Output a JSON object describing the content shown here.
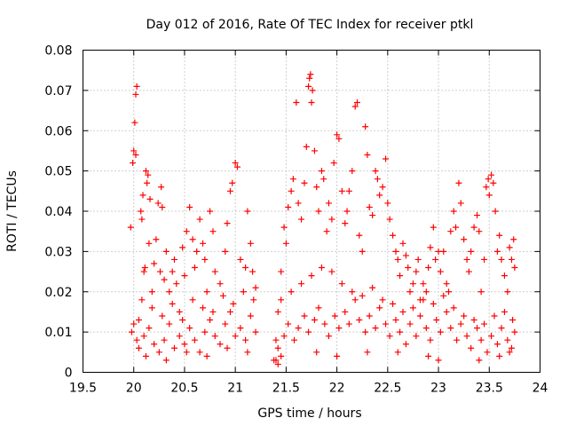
{
  "chart_data": {
    "type": "scatter",
    "title": "Day 012 of 2016, Rate Of TEC Index for receiver ptkl",
    "xlabel": "GPS time / hours",
    "ylabel": "ROTI / TECUs",
    "xlim": [
      19.5,
      24
    ],
    "ylim": [
      0,
      0.08
    ],
    "x_ticks": [
      19.5,
      20,
      20.5,
      21,
      21.5,
      22,
      22.5,
      23,
      23.5,
      24
    ],
    "x_tick_labels": [
      "19.5",
      "20",
      "20.5",
      "21",
      "21.5",
      "22",
      "22.5",
      "23",
      "23.5",
      "24"
    ],
    "y_ticks": [
      0,
      0.01,
      0.02,
      0.03,
      0.04,
      0.05,
      0.06,
      0.07,
      0.08
    ],
    "y_tick_labels": [
      "0",
      "0.01",
      "0.02",
      "0.03",
      "0.04",
      "0.05",
      "0.06",
      "0.07",
      "0.08"
    ],
    "grid": true,
    "marker": "+",
    "color": "#ff0000",
    "series": [
      {
        "name": "ROTI",
        "points": [
          [
            19.97,
            0.036
          ],
          [
            19.99,
            0.052
          ],
          [
            20.0,
            0.055
          ],
          [
            20.01,
            0.062
          ],
          [
            20.02,
            0.069
          ],
          [
            20.03,
            0.071
          ],
          [
            20.02,
            0.054
          ],
          [
            19.98,
            0.01
          ],
          [
            20.0,
            0.012
          ],
          [
            20.03,
            0.008
          ],
          [
            20.05,
            0.013
          ],
          [
            20.07,
            0.04
          ],
          [
            20.08,
            0.038
          ],
          [
            20.09,
            0.044
          ],
          [
            20.1,
            0.025
          ],
          [
            20.11,
            0.026
          ],
          [
            20.12,
            0.05
          ],
          [
            20.13,
            0.047
          ],
          [
            20.14,
            0.049
          ],
          [
            20.15,
            0.032
          ],
          [
            20.16,
            0.043
          ],
          [
            20.18,
            0.02
          ],
          [
            20.2,
            0.027
          ],
          [
            20.22,
            0.033
          ],
          [
            20.24,
            0.042
          ],
          [
            20.26,
            0.025
          ],
          [
            20.27,
            0.046
          ],
          [
            20.28,
            0.041
          ],
          [
            20.3,
            0.023
          ],
          [
            20.32,
            0.03
          ],
          [
            20.35,
            0.02
          ],
          [
            20.38,
            0.025
          ],
          [
            20.4,
            0.028
          ],
          [
            20.42,
            0.022
          ],
          [
            20.45,
            0.015
          ],
          [
            20.48,
            0.031
          ],
          [
            20.5,
            0.024
          ],
          [
            20.52,
            0.035
          ],
          [
            20.55,
            0.041
          ],
          [
            20.58,
            0.033
          ],
          [
            20.6,
            0.026
          ],
          [
            20.62,
            0.03
          ],
          [
            20.65,
            0.038
          ],
          [
            20.68,
            0.032
          ],
          [
            20.7,
            0.028
          ],
          [
            20.72,
            0.02
          ],
          [
            20.75,
            0.04
          ],
          [
            20.78,
            0.035
          ],
          [
            20.8,
            0.025
          ],
          [
            20.85,
            0.022
          ],
          [
            20.9,
            0.03
          ],
          [
            20.92,
            0.037
          ],
          [
            20.95,
            0.045
          ],
          [
            20.97,
            0.047
          ],
          [
            21.0,
            0.052
          ],
          [
            21.02,
            0.051
          ],
          [
            21.05,
            0.028
          ],
          [
            21.1,
            0.026
          ],
          [
            21.12,
            0.04
          ],
          [
            21.15,
            0.032
          ],
          [
            21.17,
            0.025
          ],
          [
            21.2,
            0.021
          ],
          [
            20.05,
            0.006
          ],
          [
            20.1,
            0.009
          ],
          [
            20.15,
            0.011
          ],
          [
            20.2,
            0.007
          ],
          [
            20.25,
            0.005
          ],
          [
            20.3,
            0.008
          ],
          [
            20.35,
            0.012
          ],
          [
            20.4,
            0.006
          ],
          [
            20.45,
            0.009
          ],
          [
            20.5,
            0.007
          ],
          [
            20.55,
            0.011
          ],
          [
            20.6,
            0.008
          ],
          [
            20.65,
            0.005
          ],
          [
            20.7,
            0.01
          ],
          [
            20.75,
            0.013
          ],
          [
            20.8,
            0.009
          ],
          [
            20.85,
            0.007
          ],
          [
            20.9,
            0.012
          ],
          [
            20.95,
            0.015
          ],
          [
            21.0,
            0.009
          ],
          [
            21.05,
            0.011
          ],
          [
            21.1,
            0.008
          ],
          [
            21.15,
            0.014
          ],
          [
            21.2,
            0.01
          ],
          [
            20.08,
            0.018
          ],
          [
            20.18,
            0.016
          ],
          [
            20.28,
            0.014
          ],
          [
            20.38,
            0.017
          ],
          [
            20.48,
            0.013
          ],
          [
            20.58,
            0.018
          ],
          [
            20.68,
            0.016
          ],
          [
            20.78,
            0.015
          ],
          [
            20.88,
            0.019
          ],
          [
            20.98,
            0.017
          ],
          [
            21.08,
            0.02
          ],
          [
            21.18,
            0.018
          ],
          [
            20.12,
            0.004
          ],
          [
            20.32,
            0.003
          ],
          [
            20.52,
            0.005
          ],
          [
            20.72,
            0.004
          ],
          [
            20.92,
            0.006
          ],
          [
            21.12,
            0.005
          ],
          [
            21.38,
            0.003
          ],
          [
            21.4,
            0.008
          ],
          [
            21.42,
            0.015
          ],
          [
            21.45,
            0.025
          ],
          [
            21.48,
            0.036
          ],
          [
            21.5,
            0.032
          ],
          [
            21.52,
            0.041
          ],
          [
            21.55,
            0.045
          ],
          [
            21.57,
            0.048
          ],
          [
            21.6,
            0.067
          ],
          [
            21.62,
            0.042
          ],
          [
            21.65,
            0.038
          ],
          [
            21.68,
            0.047
          ],
          [
            21.7,
            0.056
          ],
          [
            21.72,
            0.071
          ],
          [
            21.73,
            0.073
          ],
          [
            21.74,
            0.074
          ],
          [
            21.75,
            0.067
          ],
          [
            21.76,
            0.07
          ],
          [
            21.78,
            0.055
          ],
          [
            21.8,
            0.046
          ],
          [
            21.82,
            0.04
          ],
          [
            21.85,
            0.05
          ],
          [
            21.87,
            0.048
          ],
          [
            21.9,
            0.035
          ],
          [
            21.92,
            0.042
          ],
          [
            21.95,
            0.038
          ],
          [
            21.97,
            0.052
          ],
          [
            22.0,
            0.059
          ],
          [
            22.02,
            0.058
          ],
          [
            22.05,
            0.045
          ],
          [
            22.08,
            0.037
          ],
          [
            22.1,
            0.04
          ],
          [
            22.12,
            0.045
          ],
          [
            22.15,
            0.05
          ],
          [
            22.18,
            0.066
          ],
          [
            22.2,
            0.067
          ],
          [
            22.22,
            0.034
          ],
          [
            22.25,
            0.03
          ],
          [
            22.28,
            0.061
          ],
          [
            22.3,
            0.054
          ],
          [
            22.32,
            0.041
          ],
          [
            22.35,
            0.039
          ],
          [
            22.38,
            0.05
          ],
          [
            22.4,
            0.048
          ],
          [
            22.42,
            0.044
          ],
          [
            22.45,
            0.046
          ],
          [
            22.48,
            0.053
          ],
          [
            22.5,
            0.042
          ],
          [
            22.52,
            0.038
          ],
          [
            22.55,
            0.034
          ],
          [
            22.58,
            0.03
          ],
          [
            22.6,
            0.028
          ],
          [
            22.62,
            0.024
          ],
          [
            22.65,
            0.032
          ],
          [
            22.68,
            0.029
          ],
          [
            22.7,
            0.026
          ],
          [
            22.72,
            0.02
          ],
          [
            22.75,
            0.022
          ],
          [
            22.78,
            0.025
          ],
          [
            22.8,
            0.028
          ],
          [
            22.82,
            0.018
          ],
          [
            22.85,
            0.022
          ],
          [
            22.88,
            0.02
          ],
          [
            22.9,
            0.026
          ],
          [
            22.92,
            0.031
          ],
          [
            22.95,
            0.036
          ],
          [
            22.97,
            0.028
          ],
          [
            23.0,
            0.03
          ],
          [
            23.02,
            0.025
          ],
          [
            23.05,
            0.03
          ],
          [
            23.08,
            0.022
          ],
          [
            23.1,
            0.02
          ],
          [
            23.12,
            0.035
          ],
          [
            23.15,
            0.04
          ],
          [
            23.17,
            0.036
          ],
          [
            23.2,
            0.047
          ],
          [
            23.22,
            0.042
          ],
          [
            23.25,
            0.033
          ],
          [
            23.28,
            0.028
          ],
          [
            23.3,
            0.025
          ],
          [
            23.32,
            0.03
          ],
          [
            23.35,
            0.036
          ],
          [
            23.38,
            0.039
          ],
          [
            23.4,
            0.035
          ],
          [
            23.42,
            0.02
          ],
          [
            23.45,
            0.028
          ],
          [
            23.47,
            0.046
          ],
          [
            23.49,
            0.048
          ],
          [
            23.5,
            0.044
          ],
          [
            23.52,
            0.049
          ],
          [
            23.54,
            0.047
          ],
          [
            23.56,
            0.04
          ],
          [
            23.58,
            0.03
          ],
          [
            23.6,
            0.034
          ],
          [
            23.62,
            0.028
          ],
          [
            23.65,
            0.024
          ],
          [
            23.68,
            0.02
          ],
          [
            23.7,
            0.031
          ],
          [
            23.72,
            0.028
          ],
          [
            23.74,
            0.033
          ],
          [
            23.75,
            0.026
          ],
          [
            21.42,
            0.006
          ],
          [
            21.48,
            0.009
          ],
          [
            21.52,
            0.012
          ],
          [
            21.58,
            0.008
          ],
          [
            21.62,
            0.011
          ],
          [
            21.68,
            0.014
          ],
          [
            21.72,
            0.01
          ],
          [
            21.78,
            0.013
          ],
          [
            21.82,
            0.016
          ],
          [
            21.88,
            0.012
          ],
          [
            21.92,
            0.009
          ],
          [
            21.98,
            0.014
          ],
          [
            22.02,
            0.011
          ],
          [
            22.08,
            0.015
          ],
          [
            22.12,
            0.012
          ],
          [
            22.18,
            0.018
          ],
          [
            22.22,
            0.013
          ],
          [
            22.28,
            0.01
          ],
          [
            22.32,
            0.014
          ],
          [
            22.38,
            0.011
          ],
          [
            22.42,
            0.016
          ],
          [
            22.48,
            0.012
          ],
          [
            22.52,
            0.009
          ],
          [
            22.58,
            0.013
          ],
          [
            22.62,
            0.01
          ],
          [
            22.68,
            0.007
          ],
          [
            22.72,
            0.012
          ],
          [
            22.78,
            0.009
          ],
          [
            22.82,
            0.014
          ],
          [
            22.88,
            0.011
          ],
          [
            22.92,
            0.008
          ],
          [
            22.98,
            0.013
          ],
          [
            23.02,
            0.01
          ],
          [
            23.08,
            0.015
          ],
          [
            23.12,
            0.011
          ],
          [
            23.18,
            0.008
          ],
          [
            23.22,
            0.012
          ],
          [
            23.28,
            0.009
          ],
          [
            23.32,
            0.006
          ],
          [
            23.38,
            0.011
          ],
          [
            23.42,
            0.008
          ],
          [
            23.48,
            0.005
          ],
          [
            23.52,
            0.009
          ],
          [
            23.58,
            0.007
          ],
          [
            23.62,
            0.011
          ],
          [
            23.68,
            0.008
          ],
          [
            23.72,
            0.006
          ],
          [
            23.75,
            0.01
          ],
          [
            21.45,
            0.018
          ],
          [
            21.55,
            0.02
          ],
          [
            21.65,
            0.022
          ],
          [
            21.75,
            0.024
          ],
          [
            21.85,
            0.026
          ],
          [
            21.95,
            0.025
          ],
          [
            22.05,
            0.022
          ],
          [
            22.15,
            0.02
          ],
          [
            22.25,
            0.019
          ],
          [
            22.35,
            0.021
          ],
          [
            22.45,
            0.018
          ],
          [
            22.55,
            0.017
          ],
          [
            22.65,
            0.015
          ],
          [
            22.75,
            0.016
          ],
          [
            22.85,
            0.018
          ],
          [
            22.95,
            0.017
          ],
          [
            23.05,
            0.019
          ],
          [
            23.15,
            0.016
          ],
          [
            23.25,
            0.014
          ],
          [
            23.35,
            0.013
          ],
          [
            23.45,
            0.012
          ],
          [
            23.55,
            0.014
          ],
          [
            23.65,
            0.015
          ],
          [
            23.73,
            0.013
          ],
          [
            21.4,
            0.003
          ],
          [
            21.42,
            0.002
          ],
          [
            21.45,
            0.004
          ],
          [
            22.9,
            0.004
          ],
          [
            23.0,
            0.003
          ],
          [
            23.4,
            0.003
          ],
          [
            23.6,
            0.004
          ],
          [
            23.7,
            0.005
          ],
          [
            22.0,
            0.004
          ],
          [
            22.3,
            0.005
          ],
          [
            22.6,
            0.005
          ],
          [
            21.8,
            0.005
          ]
        ]
      }
    ]
  }
}
